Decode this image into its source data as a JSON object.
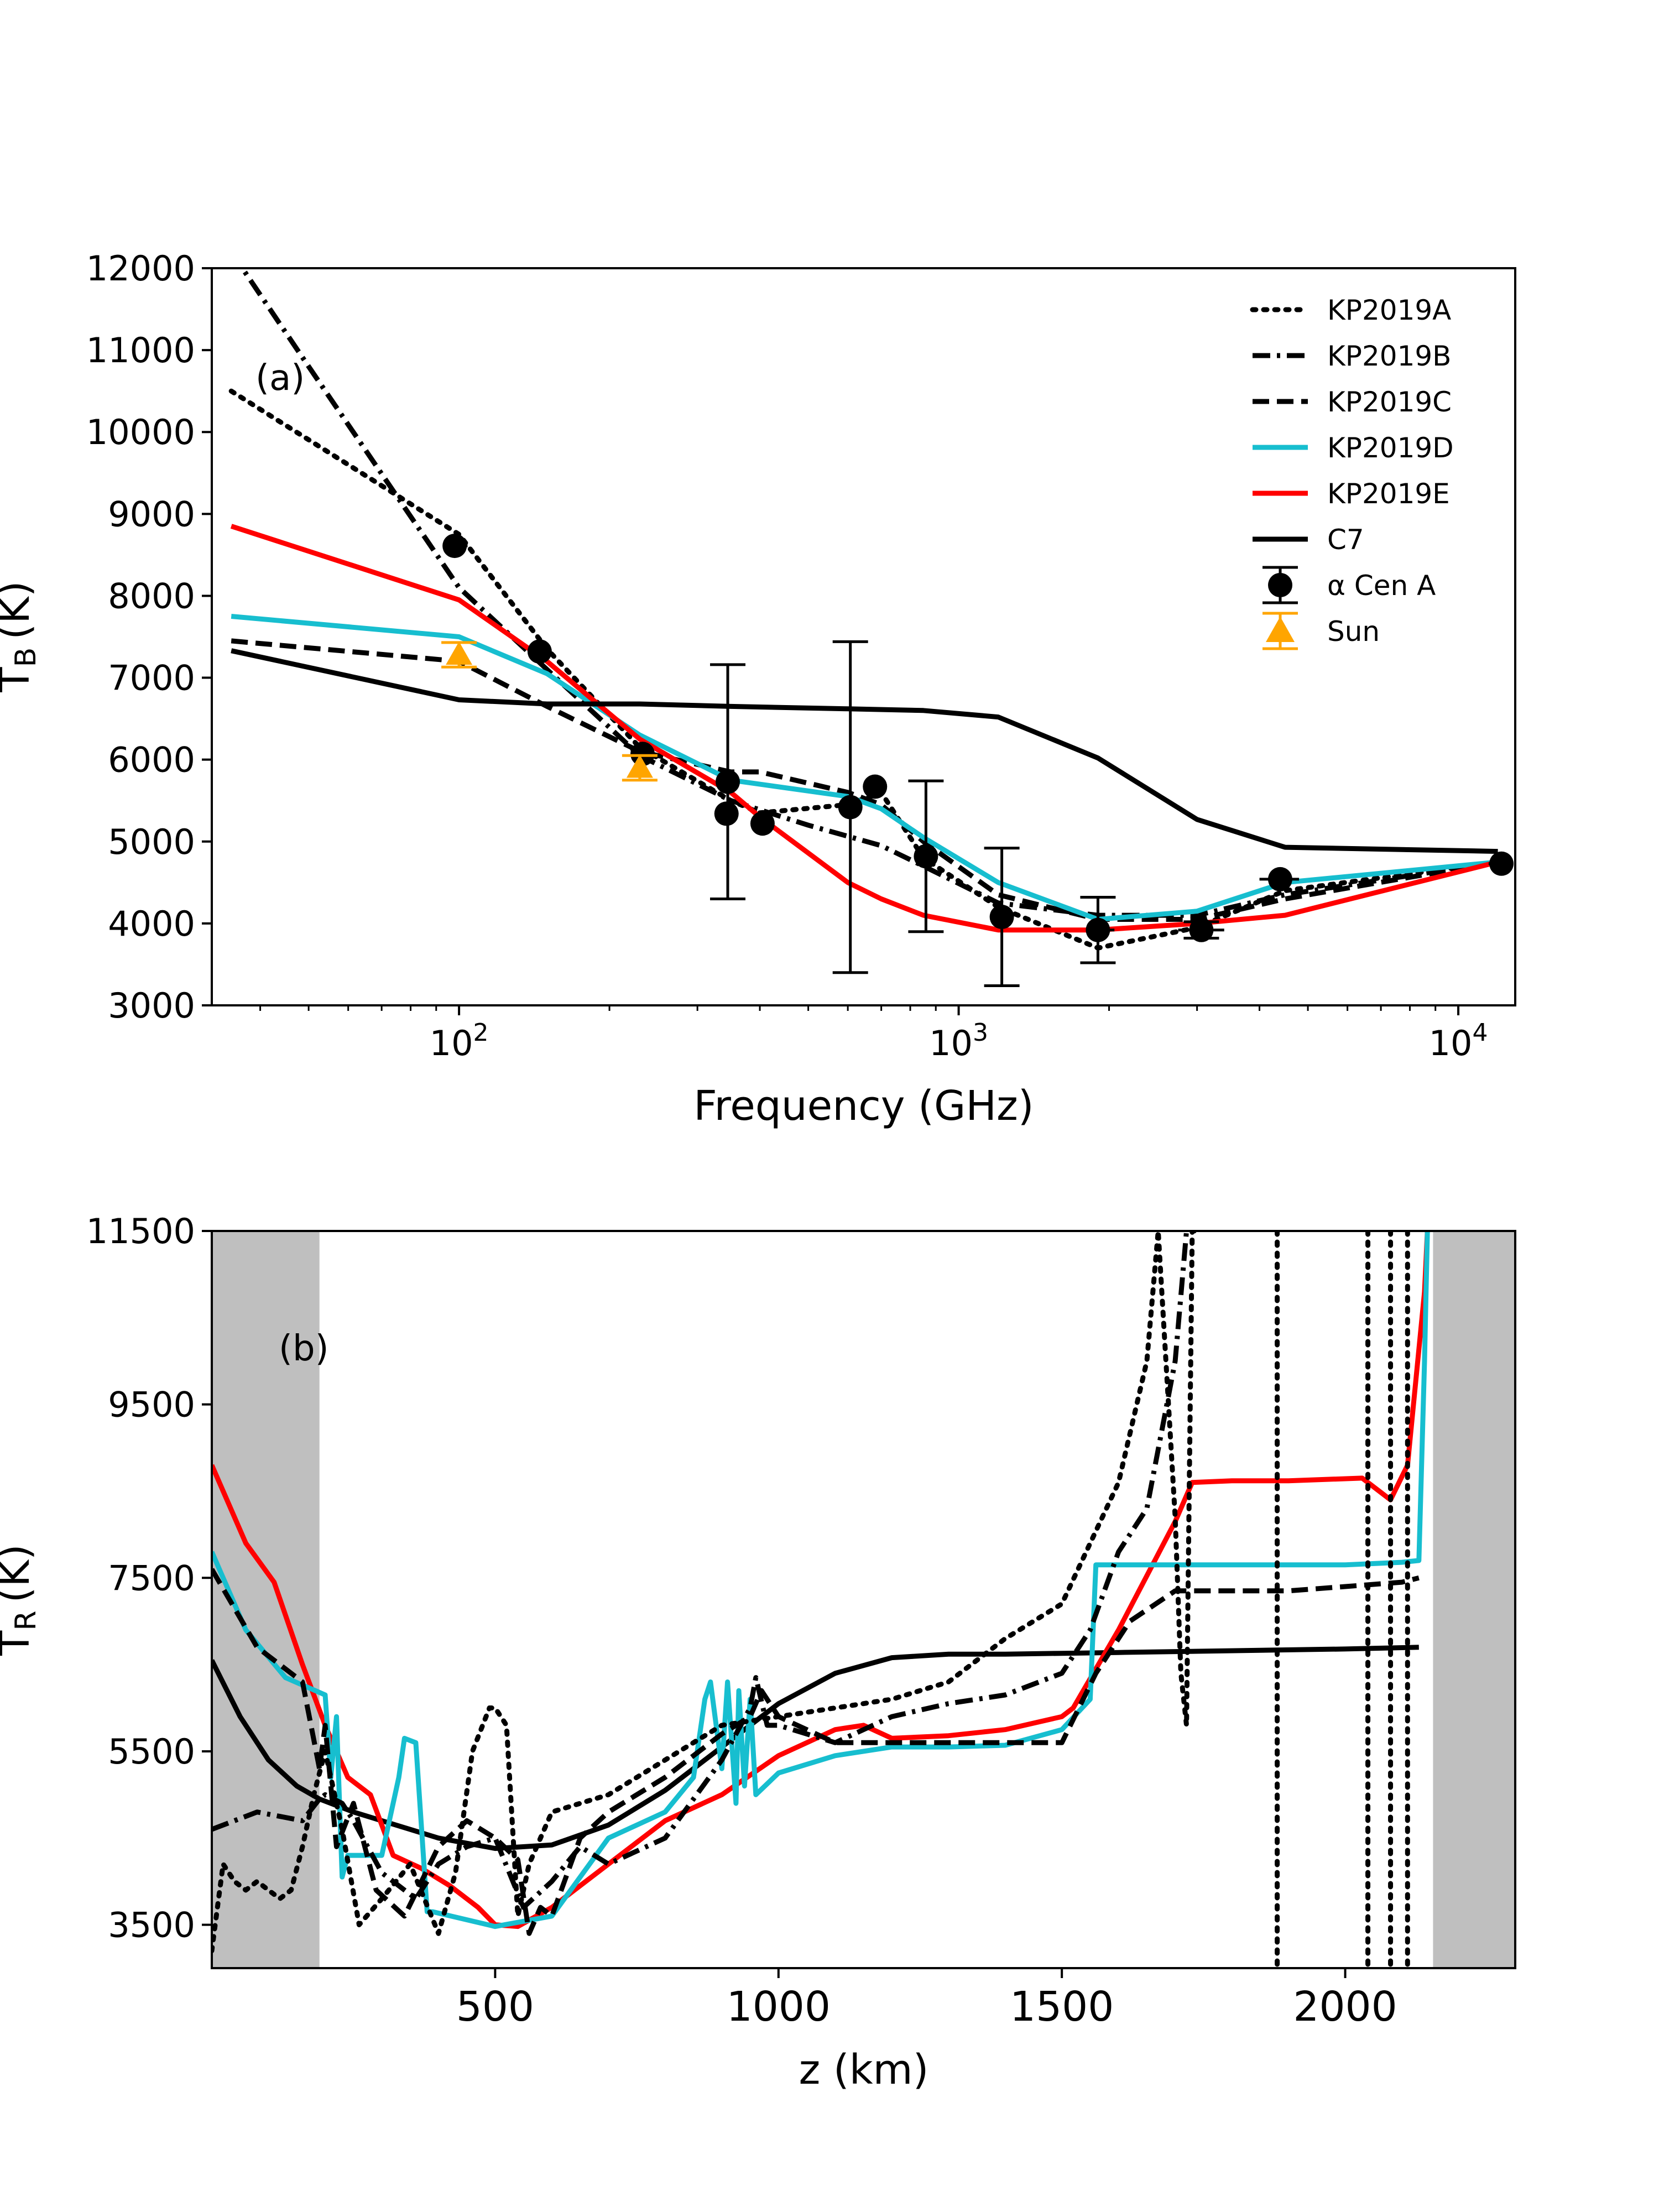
{
  "chart_data": [
    {
      "type": "line",
      "panel_label": "(a)",
      "xlabel": "Frequency (GHz)",
      "ylabel": "T",
      "ylabel_sub": "B",
      "ylabel_unit": "(K)",
      "xscale": "log",
      "xlim": [
        32,
        13000
      ],
      "ylim": [
        3000,
        12000
      ],
      "xticks": [
        {
          "value": 100,
          "base": "10",
          "exp": "2"
        },
        {
          "value": 1000,
          "base": "10",
          "exp": "3"
        },
        {
          "value": 10000,
          "base": "10",
          "exp": "4"
        }
      ],
      "yticks": [
        "3000",
        "4000",
        "5000",
        "6000",
        "7000",
        "8000",
        "9000",
        "10000",
        "11000",
        "12000"
      ],
      "legend_position": "top-right",
      "legend": [
        {
          "label": "KP2019A",
          "style": "dotted",
          "color": "#000000",
          "kind": "line"
        },
        {
          "label": "KP2019B",
          "style": "dashdot",
          "color": "#000000",
          "kind": "line"
        },
        {
          "label": "KP2019C",
          "style": "dashed",
          "color": "#000000",
          "kind": "line"
        },
        {
          "label": "KP2019D",
          "style": "solid",
          "color": "#17becf",
          "kind": "line"
        },
        {
          "label": "KP2019E",
          "style": "solid",
          "color": "#ff0000",
          "kind": "line"
        },
        {
          "label": "C7",
          "style": "solid",
          "color": "#000000",
          "kind": "line"
        },
        {
          "label": "α Cen A",
          "color": "#000000",
          "kind": "circle"
        },
        {
          "label": "Sun",
          "color": "#ffa500",
          "kind": "triangle"
        }
      ],
      "series": [
        {
          "name": "KP2019A",
          "style": "dotted",
          "color": "#000000",
          "x": [
            35,
            100,
            150,
            230,
            350,
            400,
            600,
            700,
            850,
            1200,
            1900,
            3000,
            4500,
            12000
          ],
          "y": [
            10500,
            8750,
            7350,
            6150,
            5500,
            5350,
            5450,
            5600,
            4800,
            4200,
            3700,
            3950,
            4400,
            4750
          ]
        },
        {
          "name": "KP2019B",
          "style": "dashdot",
          "color": "#000000",
          "x": [
            35,
            50,
            100,
            150,
            230,
            350,
            500,
            700,
            850,
            1200,
            1900,
            3000,
            4500,
            12000
          ],
          "y": [
            12200,
            10800,
            8100,
            7100,
            6050,
            5500,
            5200,
            4950,
            4700,
            4250,
            4100,
            4100,
            4350,
            4750
          ]
        },
        {
          "name": "KP2019C",
          "style": "dashed",
          "color": "#000000",
          "x": [
            35,
            100,
            150,
            230,
            350,
            400,
            600,
            700,
            850,
            1200,
            1900,
            3000,
            4500,
            12000
          ],
          "y": [
            7450,
            7200,
            6650,
            6100,
            5850,
            5850,
            5600,
            5450,
            5000,
            4350,
            4050,
            4050,
            4300,
            4750
          ]
        },
        {
          "name": "KP2019D",
          "style": "solid",
          "color": "#17becf",
          "x": [
            35,
            100,
            150,
            230,
            350,
            400,
            600,
            700,
            850,
            1200,
            1900,
            3000,
            4500,
            12000
          ],
          "y": [
            7750,
            7500,
            7050,
            6300,
            5750,
            5700,
            5550,
            5400,
            5050,
            4500,
            4050,
            4150,
            4500,
            4750
          ]
        },
        {
          "name": "KP2019E",
          "style": "solid",
          "color": "#ff0000",
          "x": [
            35,
            100,
            150,
            230,
            350,
            400,
            600,
            700,
            850,
            1200,
            1900,
            3000,
            4500,
            12000
          ],
          "y": [
            8850,
            7950,
            7200,
            6250,
            5600,
            5300,
            4500,
            4300,
            4100,
            3920,
            3920,
            4000,
            4100,
            4750
          ]
        },
        {
          "name": "C7",
          "style": "solid",
          "color": "#000000",
          "x": [
            35,
            100,
            150,
            230,
            350,
            600,
            850,
            1200,
            1900,
            3000,
            4500,
            12000
          ],
          "y": [
            7330,
            6730,
            6680,
            6680,
            6650,
            6620,
            6600,
            6520,
            6020,
            5270,
            4930,
            4880
          ]
        }
      ],
      "observations": [
        {
          "name": "α Cen A",
          "points": [
            {
              "x": 98,
              "y": 8610,
              "yerr": 0,
              "xerr": [
                93,
                104
              ]
            },
            {
              "x": 145,
              "y": 7320,
              "yerr": 0,
              "xerr": [
                138,
                152
              ]
            },
            {
              "x": 233,
              "y": 6070,
              "yerr": 0,
              "xerr": [
                222,
                244
              ]
            },
            {
              "x": 343,
              "y": 5340,
              "yerr": 0,
              "xerr": [
                327,
                359
              ]
            },
            {
              "x": 345,
              "y": 5730,
              "yerr": 1430
            },
            {
              "x": 405,
              "y": 5220,
              "yerr": 0
            },
            {
              "x": 607,
              "y": 5420,
              "yerr": 2020
            },
            {
              "x": 680,
              "y": 5670,
              "yerr": 0,
              "xerr": [
                650,
                710
              ]
            },
            {
              "x": 860,
              "y": 4820,
              "yerr": 920
            },
            {
              "x": 1220,
              "y": 4080,
              "yerr": 840
            },
            {
              "x": 1900,
              "y": 3920,
              "yerr": 400,
              "xerr": [
                1800,
                2050
              ]
            },
            {
              "x": 3060,
              "y": 3920,
              "yerr": 100,
              "xerr": [
                2750,
                3400
              ]
            },
            {
              "x": 4400,
              "y": 4540,
              "yerr": 0,
              "xerr": [
                4000,
                4800
              ]
            },
            {
              "x": 12200,
              "y": 4730,
              "yerr": 0,
              "xerr": [
                11500,
                12900
              ]
            }
          ]
        },
        {
          "name": "Sun",
          "points": [
            {
              "x": 100,
              "y": 7280,
              "yerr": 150
            },
            {
              "x": 230,
              "y": 5900,
              "yerr": 150
            }
          ]
        }
      ]
    },
    {
      "type": "line",
      "panel_label": "(b)",
      "xlabel": "z (km)",
      "ylabel": "T",
      "ylabel_sub": "R",
      "ylabel_unit": "(K)",
      "xlim": [
        0,
        2300
      ],
      "ylim": [
        3000,
        11500
      ],
      "xticks": [
        "500",
        "1000",
        "1500",
        "2000"
      ],
      "yticks": [
        "3500",
        "5500",
        "7500",
        "9500",
        "11500"
      ],
      "shaded_regions": [
        [
          0,
          190
        ],
        [
          2155,
          2300
        ]
      ],
      "series": [
        {
          "name": "C7",
          "style": "solid",
          "color": "#000000",
          "x": [
            0,
            50,
            100,
            150,
            190,
            250,
            300,
            400,
            500,
            600,
            700,
            800,
            900,
            1000,
            1100,
            1200,
            1300,
            1400,
            1500,
            1600,
            1700,
            2000,
            2130
          ],
          "y": [
            6550,
            5900,
            5400,
            5100,
            4950,
            4800,
            4700,
            4500,
            4380,
            4420,
            4650,
            5050,
            5550,
            6050,
            6400,
            6580,
            6620,
            6620,
            6630,
            6640,
            6650,
            6680,
            6700
          ]
        },
        {
          "name": "KP2019E",
          "style": "solid",
          "color": "#ff0000",
          "x": [
            0,
            60,
            110,
            160,
            200,
            240,
            280,
            320,
            370,
            420,
            470,
            500,
            540,
            600,
            700,
            800,
            900,
            1000,
            1100,
            1150,
            1200,
            1300,
            1400,
            1500,
            1520,
            1600,
            1700,
            1730,
            1800,
            1900,
            2030,
            2060,
            2080,
            2110,
            2140,
            2145
          ],
          "y": [
            8800,
            7900,
            7450,
            6500,
            5800,
            5200,
            5000,
            4300,
            4150,
            3950,
            3700,
            3500,
            3480,
            3700,
            4200,
            4700,
            5000,
            5450,
            5750,
            5800,
            5650,
            5680,
            5750,
            5900,
            6000,
            6900,
            8150,
            8600,
            8620,
            8620,
            8650,
            8500,
            8400,
            8800,
            10800,
            11500
          ]
        },
        {
          "name": "KP2019D",
          "style": "solid",
          "color": "#17becf",
          "x": [
            0,
            60,
            130,
            200,
            210,
            220,
            230,
            240,
            300,
            330,
            340,
            360,
            380,
            390,
            500,
            600,
            700,
            800,
            850,
            870,
            880,
            900,
            910,
            925,
            930,
            940,
            950,
            960,
            1000,
            1100,
            1200,
            1300,
            1400,
            1500,
            1550,
            1560,
            1600,
            1700,
            1800,
            1900,
            2000,
            2100,
            2130,
            2140,
            2145
          ],
          "y": [
            7800,
            6900,
            6350,
            6150,
            5200,
            5900,
            4050,
            4300,
            4300,
            5200,
            5650,
            5600,
            3650,
            3650,
            3480,
            3600,
            4500,
            4800,
            5200,
            6100,
            6300,
            5300,
            6300,
            4900,
            6200,
            5100,
            6100,
            5000,
            5250,
            5450,
            5550,
            5550,
            5570,
            5750,
            6100,
            7650,
            7650,
            7650,
            7650,
            7650,
            7650,
            7680,
            7700,
            10000,
            11500
          ]
        },
        {
          "name": "KP2019C",
          "style": "dashed",
          "color": "#000000",
          "x": [
            0,
            80,
            160,
            190,
            200,
            220,
            250,
            290,
            340,
            400,
            450,
            500,
            540,
            560,
            580,
            600,
            650,
            700,
            800,
            900,
            950,
            970,
            1000,
            1100,
            1200,
            1300,
            1400,
            1500,
            1530,
            1560,
            1620,
            1700,
            1800,
            1900,
            2000,
            2100,
            2130
          ],
          "y": [
            7600,
            6700,
            6300,
            5300,
            5800,
            4400,
            4900,
            3900,
            3600,
            4400,
            4700,
            4500,
            4250,
            3400,
            3700,
            3600,
            4500,
            4800,
            5200,
            5700,
            5900,
            6200,
            5900,
            5600,
            5600,
            5600,
            5600,
            5600,
            6000,
            6400,
            7000,
            7350,
            7350,
            7350,
            7400,
            7450,
            7500
          ]
        },
        {
          "name": "KP2019B",
          "style": "dashdot",
          "color": "#000000",
          "x": [
            0,
            80,
            160,
            190,
            200,
            230,
            250,
            300,
            360,
            400,
            450,
            500,
            550,
            600,
            650,
            700,
            800,
            900,
            950,
            960,
            980,
            1000,
            1100,
            1200,
            1300,
            1400,
            1500,
            1550,
            1600,
            1650,
            1700,
            1720
          ],
          "y": [
            4600,
            4800,
            4700,
            4950,
            5000,
            4900,
            4700,
            4100,
            3800,
            4200,
            4400,
            4500,
            3700,
            4000,
            4400,
            4200,
            4500,
            5400,
            6000,
            6350,
            5800,
            5800,
            5600,
            5900,
            6050,
            6150,
            6400,
            6900,
            7800,
            8300,
            10000,
            11500
          ]
        },
        {
          "name": "KP2019A",
          "style": "dotted",
          "color": "#000000",
          "x": [
            0,
            10,
            20,
            40,
            60,
            80,
            100,
            120,
            140,
            160,
            180,
            200,
            230,
            260,
            300,
            350,
            400,
            430,
            460,
            490,
            500,
            520,
            540,
            560,
            600,
            700,
            800,
            900,
            1000,
            1100,
            1200,
            1300,
            1400,
            1500,
            1600,
            1650,
            1670,
            1700,
            1710,
            1720,
            1730,
            1740
          ],
          "y": [
            3200,
            3700,
            4200,
            4000,
            3900,
            4000,
            3900,
            3800,
            3900,
            4400,
            5000,
            5500,
            4600,
            3500,
            3800,
            4200,
            3400,
            4100,
            5500,
            6000,
            6000,
            5800,
            3600,
            4200,
            4800,
            5000,
            5400,
            5800,
            5900,
            6000,
            6100,
            6300,
            6800,
            7200,
            8600,
            10000,
            11500,
            8200,
            6400,
            5800,
            11500,
            11500
          ]
        }
      ]
    }
  ]
}
